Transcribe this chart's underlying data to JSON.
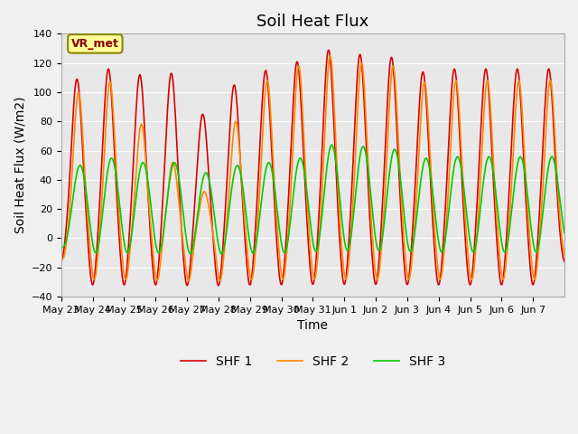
{
  "title": "Soil Heat Flux",
  "ylabel": "Soil Heat Flux (W/m2)",
  "xlabel": "Time",
  "ylim": [
    -40,
    140
  ],
  "yticks": [
    -40,
    -20,
    0,
    20,
    40,
    60,
    80,
    100,
    120,
    140
  ],
  "xtick_labels": [
    "May 23",
    "May 24",
    "May 25",
    "May 26",
    "May 27",
    "May 28",
    "May 29",
    "May 30",
    "May 31",
    "Jun 1",
    "Jun 2",
    "Jun 3",
    "Jun 4",
    "Jun 5",
    "Jun 6",
    "Jun 7"
  ],
  "legend_labels": [
    "SHF 1",
    "SHF 2",
    "SHF 3"
  ],
  "colors": {
    "SHF1": "#dd0000",
    "SHF2": "#ff8800",
    "SHF3": "#00cc00"
  },
  "background_color": "#e8e8e8",
  "figure_background": "#f0f0f0",
  "annotation_text": "VR_met",
  "annotation_bg": "#ffff99",
  "annotation_border": "#888800",
  "linewidth": 1.2,
  "title_fontsize": 13,
  "axis_fontsize": 10,
  "tick_fontsize": 8,
  "legend_fontsize": 10,
  "shf1_peaks": [
    109,
    116,
    112,
    113,
    85,
    105,
    115,
    121,
    129,
    126,
    124,
    114,
    116,
    116,
    116,
    116
  ],
  "shf2_peaks": [
    100,
    107,
    78,
    52,
    32,
    80,
    108,
    118,
    125,
    120,
    118,
    107,
    108,
    108,
    108,
    108
  ],
  "shf3_peaks": [
    50,
    55,
    52,
    52,
    45,
    50,
    52,
    55,
    64,
    63,
    61,
    55,
    56,
    56,
    56,
    56
  ]
}
